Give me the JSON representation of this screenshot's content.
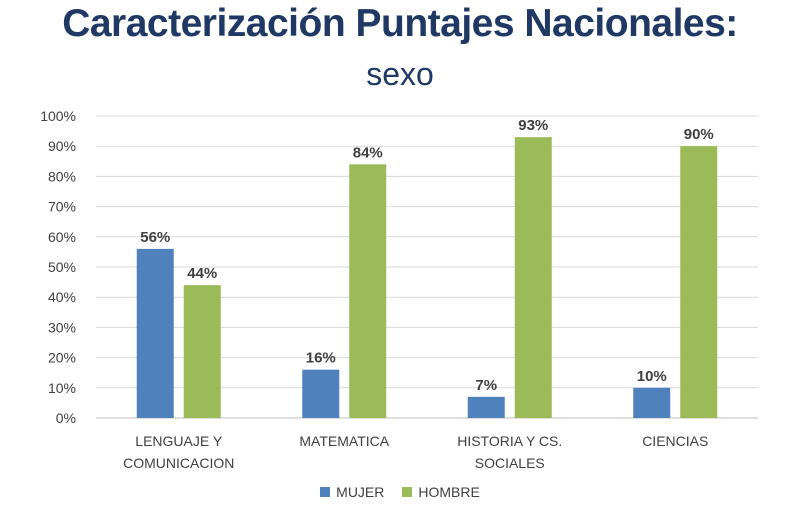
{
  "chart_data": {
    "type": "bar",
    "title": "Caracterización Puntajes Nacionales:",
    "subtitle": "sexo",
    "categories": [
      [
        "LENGUAJE Y",
        "COMUNICACION"
      ],
      [
        "MATEMATICA"
      ],
      [
        "HISTORIA Y CS.",
        "SOCIALES"
      ],
      [
        "CIENCIAS"
      ]
    ],
    "series": [
      {
        "name": "MUJER",
        "color": "#4F81BD",
        "values": [
          56,
          16,
          7,
          10
        ],
        "labels": [
          "56%",
          "16%",
          "7%",
          "10%"
        ]
      },
      {
        "name": "HOMBRE",
        "color": "#9BBB59",
        "values": [
          44,
          84,
          93,
          90
        ],
        "labels": [
          "44%",
          "84%",
          "93%",
          "90%"
        ]
      }
    ],
    "y_ticks": [
      "0%",
      "10%",
      "20%",
      "30%",
      "40%",
      "50%",
      "60%",
      "70%",
      "80%",
      "90%",
      "100%"
    ],
    "ylim": [
      0,
      100
    ],
    "legend_position": "bottom",
    "gridlines": true
  }
}
